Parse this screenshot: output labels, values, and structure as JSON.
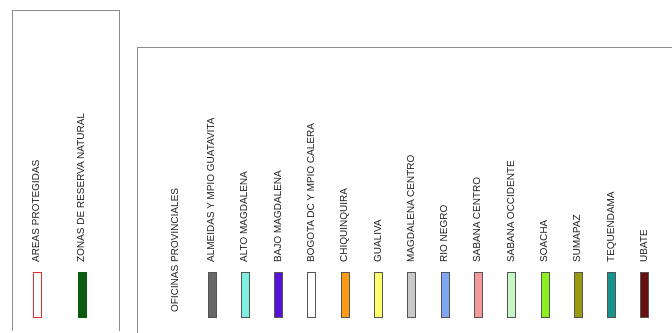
{
  "legend_left": {
    "items": [
      {
        "label": "AREAS PROTEGIDAS",
        "fill": "#ffffff",
        "stroke": "#e03030"
      },
      {
        "label": "ZONAS DE RESERVA NATURAL",
        "fill": "#0b5a12",
        "stroke": "#0b5a12"
      }
    ]
  },
  "legend_right": {
    "heading": "OFICINAS PROVINCIALES",
    "items": [
      {
        "label": "ALMEIDAS Y MPIO GUATAVITA",
        "fill": "#676767",
        "stroke": "#555555"
      },
      {
        "label": "ALTO MAGDALENA",
        "fill": "#7ff0e0",
        "stroke": "#555555"
      },
      {
        "label": "BAJO MAGDALENA",
        "fill": "#5514d8",
        "stroke": "#555555"
      },
      {
        "label": "BOGOTA DC Y MPIO CALERA",
        "fill": "#ffffff",
        "stroke": "#555555"
      },
      {
        "label": "CHIQUINQUIRA",
        "fill": "#ff9a14",
        "stroke": "#555555"
      },
      {
        "label": "GUALIVA",
        "fill": "#ffff6e",
        "stroke": "#555555"
      },
      {
        "label": "MAGDALENA CENTRO",
        "fill": "#c8c8c8",
        "stroke": "#555555"
      },
      {
        "label": "RIO NEGRO",
        "fill": "#7ea6f2",
        "stroke": "#555555"
      },
      {
        "label": "SABANA CENTRO",
        "fill": "#f29a9a",
        "stroke": "#555555"
      },
      {
        "label": "SABANA OCCIDENTE",
        "fill": "#c6f5c6",
        "stroke": "#555555"
      },
      {
        "label": "SOACHA",
        "fill": "#8ef020",
        "stroke": "#555555"
      },
      {
        "label": "SUMAPAZ",
        "fill": "#9a9a10",
        "stroke": "#555555"
      },
      {
        "label": "TEQUENDAMA",
        "fill": "#14948a",
        "stroke": "#555555"
      },
      {
        "label": "UBATE",
        "fill": "#6a0f0f",
        "stroke": "#555555"
      }
    ]
  }
}
